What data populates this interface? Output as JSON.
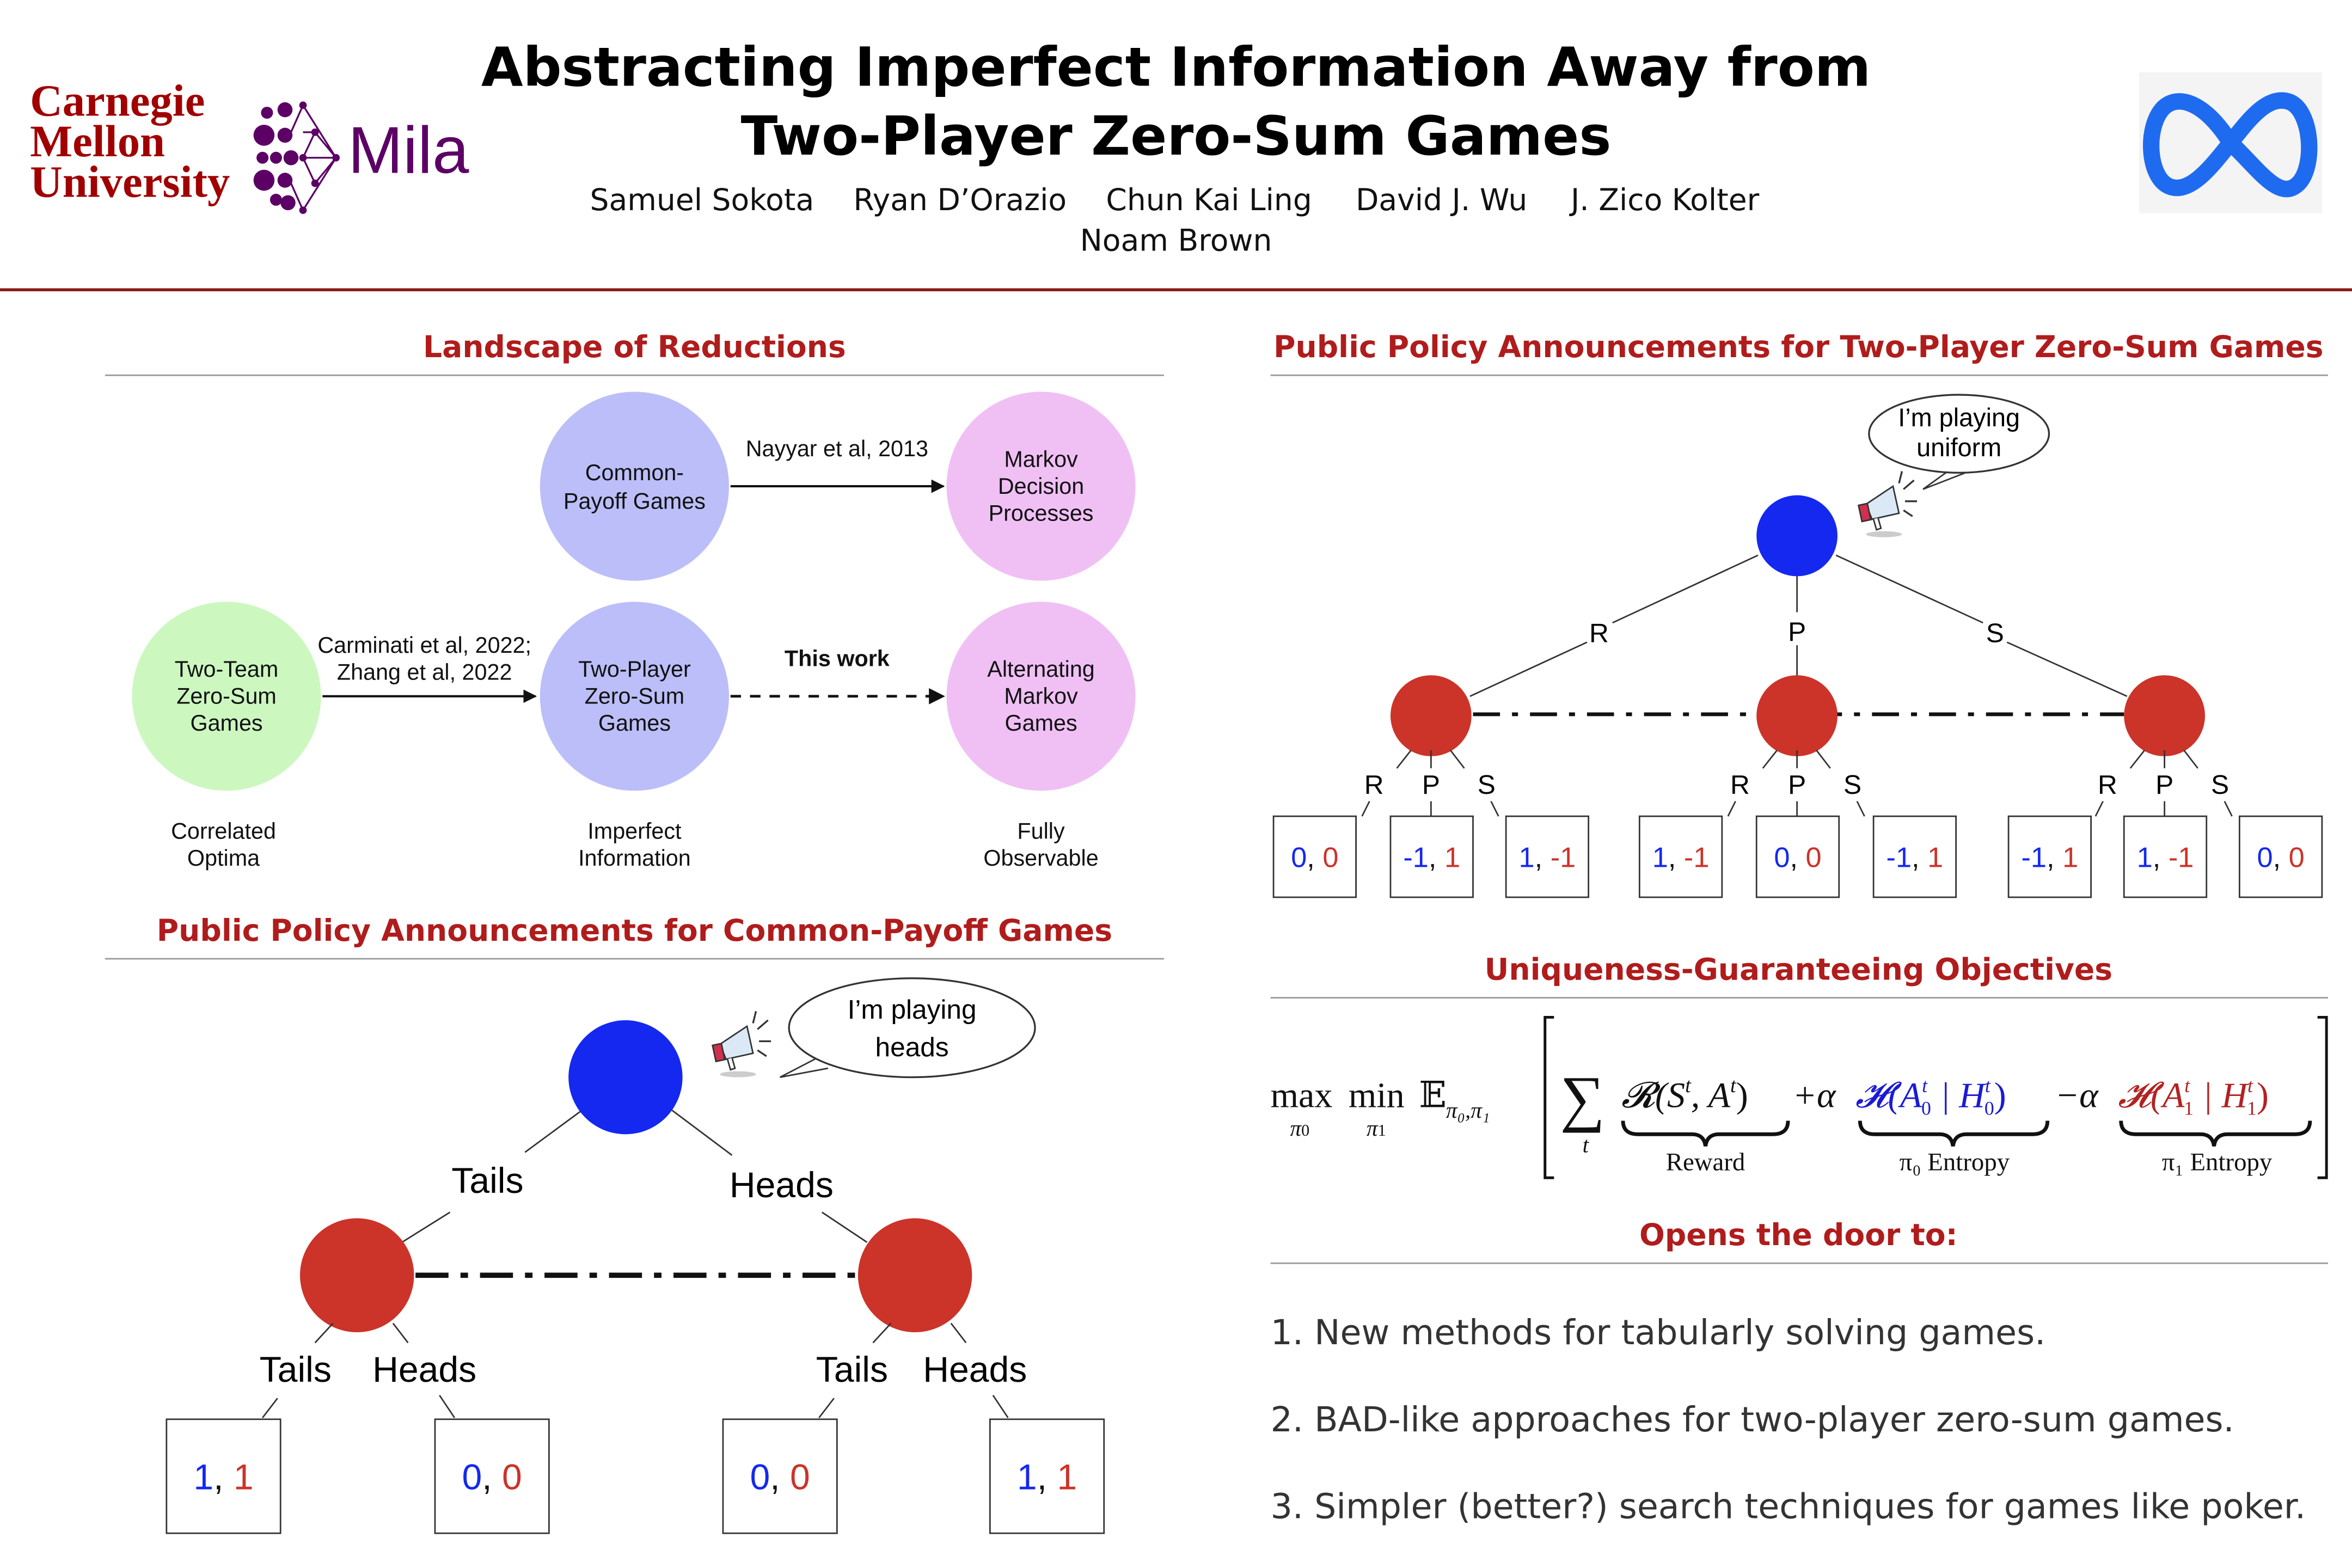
{
  "colors": {
    "accent_red": "#b01c1c",
    "divider": "#8b1a1a",
    "player0_blue": "#1428f0",
    "player1_red": "#cc3329",
    "cmu_red": "#a00000",
    "mila_purple": "#5c0066",
    "meta_blue": "#1f6bf0"
  },
  "header": {
    "cmu_logo": [
      "Carnegie",
      "Mellon",
      "University"
    ],
    "mila_logo": "Mila",
    "meta_logo_icon": "meta-infinity-icon",
    "title_line1": "Abstracting Imperfect Information Away from",
    "title_line2": "Two-Player Zero-Sum Games",
    "authors": [
      "Samuel Sokota",
      "Ryan D’Orazio",
      "Chun Kai Ling",
      "David J. Wu",
      "J. Zico Kolter",
      "Noam Brown"
    ]
  },
  "landscape": {
    "title": "Landscape of Reductions",
    "nodes": {
      "common_payoff": [
        "Common-",
        "Payoff Games"
      ],
      "mdp": [
        "Markov",
        "Decision",
        "Processes"
      ],
      "two_team": [
        "Two-Team",
        "Zero-Sum",
        "Games"
      ],
      "two_player": [
        "Two-Player",
        "Zero-Sum",
        "Games"
      ],
      "alternating": [
        "Alternating",
        "Markov",
        "Games"
      ]
    },
    "edges": {
      "nayyar": "Nayyar et al, 2013",
      "carminati": [
        "Carminati et al, 2022;",
        "Zhang et al, 2022"
      ],
      "this_work": "This work"
    },
    "columns": {
      "correlated": [
        "Correlated",
        "Optima"
      ],
      "imperfect": [
        "Imperfect",
        "Information"
      ],
      "fully": [
        "Fully",
        "Observable"
      ]
    }
  },
  "common_payoff": {
    "title": "Public Policy Announcements for Common-Payoff Games",
    "speech": [
      "I’m playing",
      "heads"
    ],
    "actions": {
      "tails": "Tails",
      "heads": "Heads"
    },
    "leaves": [
      [
        "1",
        "1"
      ],
      [
        "0",
        "0"
      ],
      [
        "0",
        "0"
      ],
      [
        "1",
        "1"
      ]
    ],
    "sep": ", "
  },
  "zero_sum": {
    "title": "Public Policy Announcements for Two-Player Zero-Sum Games",
    "speech": [
      "I’m playing",
      "uniform"
    ],
    "actions": [
      "R",
      "P",
      "S"
    ],
    "leaves": [
      [
        "0",
        "0"
      ],
      [
        "-1",
        "1"
      ],
      [
        "1",
        "-1"
      ],
      [
        "1",
        "-1"
      ],
      [
        "0",
        "0"
      ],
      [
        "-1",
        "1"
      ],
      [
        "-1",
        "1"
      ],
      [
        "1",
        "-1"
      ],
      [
        "0",
        "0"
      ]
    ],
    "sep": ", "
  },
  "objectives": {
    "title": "Uniqueness-Guaranteeing Objectives",
    "formula": {
      "max": "max",
      "max_sub": "π",
      "max_sub_idx": "0",
      "min": "min",
      "min_sub": "π",
      "min_sub_idx": "1",
      "E": "𝔼",
      "E_sub": "π₀,π₁",
      "sum": "∑",
      "sum_sub": "t",
      "reward": "𝓡(S",
      "t": "t",
      "comma_A": ", A",
      "close": ")",
      "plus_alpha": "+α",
      "minus_alpha": "−α",
      "H": "𝓗(A",
      "bar_H": " | H",
      "idx0": "0",
      "idx1": "1",
      "reward_label": "Reward",
      "pi0_entropy": "π₀ Entropy",
      "pi1_entropy": "π₁ Entropy"
    }
  },
  "opens": {
    "title": "Opens the door to:",
    "items": [
      "1.  New methods for tabularly solving games.",
      "2.  BAD-like approaches for two-player zero-sum games.",
      "3.  Simpler (better?) search techniques for games like poker."
    ]
  }
}
